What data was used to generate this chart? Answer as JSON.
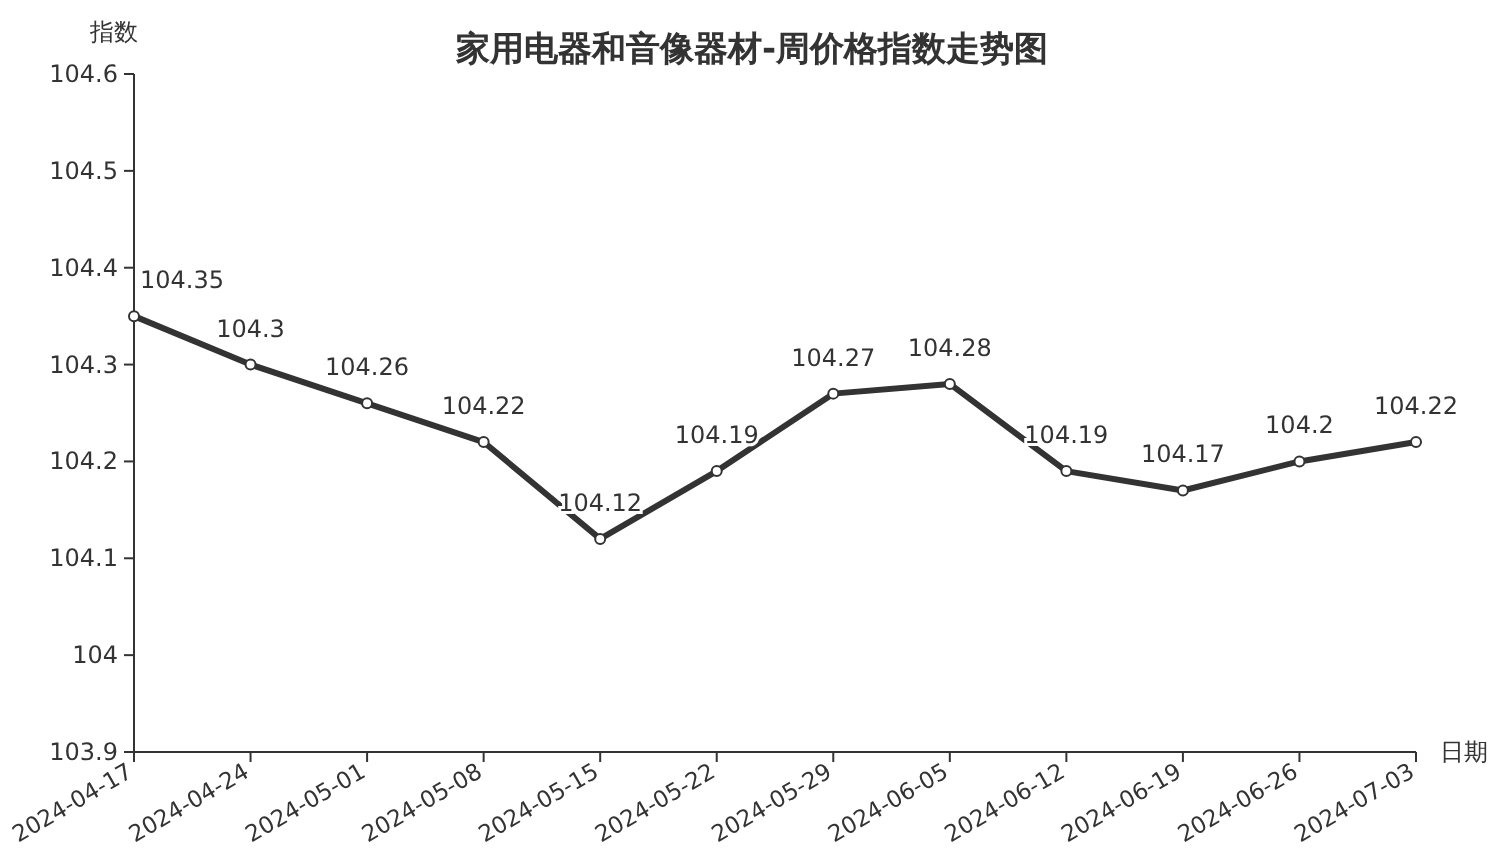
{
  "chart_data": {
    "type": "line",
    "title": "家用电器和音像器材-周价格指数走势图",
    "xlabel": "日期",
    "ylabel": "指数",
    "categories": [
      "2024-04-17",
      "2024-04-24",
      "2024-05-01",
      "2024-05-08",
      "2024-05-15",
      "2024-05-22",
      "2024-05-29",
      "2024-06-05",
      "2024-06-12",
      "2024-06-19",
      "2024-06-26",
      "2024-07-03"
    ],
    "series": [
      {
        "color": "#333333",
        "values": [
          104.35,
          104.3,
          104.26,
          104.22,
          104.12,
          104.19,
          104.27,
          104.28,
          104.19,
          104.17,
          104.2,
          104.22
        ]
      }
    ],
    "ylim": [
      103.9,
      104.6
    ],
    "yticks": [
      103.9,
      104,
      104.1,
      104.2,
      104.3,
      104.4,
      104.5,
      104.6
    ],
    "marker": "circle",
    "line_style": "solid",
    "data_labels": true,
    "grid": false
  }
}
